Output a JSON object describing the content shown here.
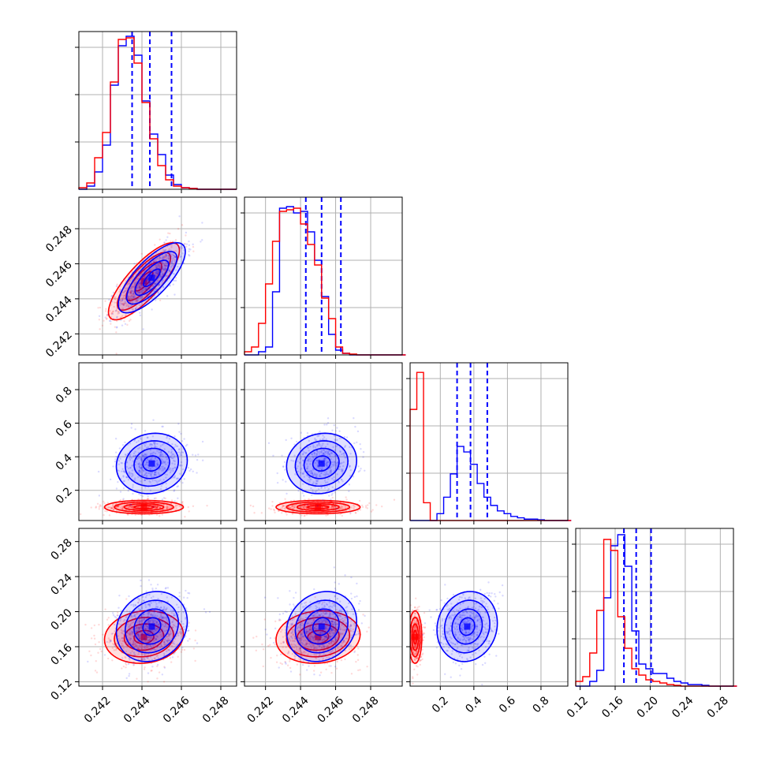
{
  "chart_data": {
    "type": "corner",
    "colors": {
      "a": "#ff0000",
      "b": "#0000ff",
      "grid": "#b0b0b0"
    },
    "parameters": [
      {
        "range": [
          0.2408,
          0.2488
        ],
        "ticks": [
          0.242,
          0.244,
          0.246,
          0.248
        ],
        "tick_labels": [
          "0.242",
          "0.244",
          "0.246",
          "0.248"
        ],
        "quantiles_b": [
          0.2435,
          0.2444,
          0.2455
        ],
        "hist": {
          "edges_start": 0.2408,
          "edge_step": 0.0004,
          "a": [
            0.01,
            0.04,
            0.2,
            0.36,
            0.68,
            0.95,
            0.96,
            0.8,
            0.55,
            0.32,
            0.15,
            0.06,
            0.02,
            0.01,
            0.005,
            0.0,
            0.0,
            0.0,
            0.0,
            0.0
          ],
          "b": [
            0.0,
            0.02,
            0.11,
            0.28,
            0.66,
            0.91,
            0.97,
            0.85,
            0.56,
            0.35,
            0.22,
            0.09,
            0.03,
            0.01,
            0.005,
            0.0,
            0.0,
            0.0,
            0.0,
            0.0
          ],
          "ymax": 1.0
        }
      },
      {
        "range": [
          0.2408,
          0.2498
        ],
        "ticks": [
          0.242,
          0.244,
          0.246,
          0.248
        ],
        "tick_labels": [
          "0.242",
          "0.244",
          "0.246",
          "0.248"
        ],
        "quantiles_b": [
          0.2443,
          0.2452,
          0.2463
        ],
        "hist": {
          "edges_start": 0.2408,
          "edge_step": 0.0004,
          "a": [
            0.02,
            0.05,
            0.2,
            0.45,
            0.72,
            0.91,
            0.92,
            0.93,
            0.83,
            0.7,
            0.57,
            0.36,
            0.23,
            0.05,
            0.01,
            0.005,
            0.0,
            0.0,
            0.0,
            0.0,
            0.0,
            0.0,
            0.0
          ],
          "b": [
            0.0,
            0.0,
            0.02,
            0.05,
            0.4,
            0.93,
            0.94,
            0.9,
            0.91,
            0.78,
            0.6,
            0.37,
            0.13,
            0.03,
            0.01,
            0.0,
            0.0,
            0.0,
            0.0,
            0.0,
            0.0,
            0.0,
            0.0
          ],
          "ymax": 1.0
        }
      },
      {
        "range": [
          0.02,
          0.96
        ],
        "ticks": [
          0.2,
          0.4,
          0.6,
          0.8
        ],
        "tick_labels": [
          "0.2",
          "0.4",
          "0.6",
          "0.8"
        ],
        "quantiles_b": [
          0.3,
          0.38,
          0.48
        ],
        "hist": {
          "edges_start": 0.02,
          "edge_step": 0.04,
          "a": [
            0.81,
            1.08,
            0.13,
            0.0,
            0.0,
            0.0,
            0.0,
            0.0,
            0.0,
            0.0,
            0.0,
            0.0,
            0.0,
            0.0,
            0.0,
            0.0,
            0.0,
            0.0,
            0.0,
            0.0,
            0.0,
            0.0,
            0.0,
            0.0
          ],
          "b": [
            0.0,
            0.0,
            0.0,
            0.0,
            0.05,
            0.17,
            0.34,
            0.54,
            0.5,
            0.41,
            0.27,
            0.17,
            0.11,
            0.07,
            0.05,
            0.03,
            0.02,
            0.01,
            0.01,
            0.005,
            0.0,
            0.0,
            0.0,
            0.0
          ],
          "ymax": 1.15
        }
      },
      {
        "range": [
          0.115,
          0.295
        ],
        "ticks": [
          0.12,
          0.16,
          0.2,
          0.24,
          0.28
        ],
        "tick_labels": [
          "0.12",
          "0.16",
          "0.20",
          "0.24",
          "0.28"
        ],
        "quantiles_b": [
          0.17,
          0.184,
          0.201
        ],
        "hist": {
          "edges_start": 0.115,
          "edge_step": 0.008,
          "a": [
            0.03,
            0.06,
            0.21,
            0.48,
            0.93,
            0.86,
            0.44,
            0.24,
            0.11,
            0.07,
            0.04,
            0.03,
            0.02,
            0.01,
            0.005,
            0.0,
            0.0,
            0.0,
            0.0,
            0.0,
            0.0,
            0.0,
            0.0
          ],
          "b": [
            0.0,
            0.0,
            0.03,
            0.1,
            0.56,
            0.89,
            0.96,
            0.76,
            0.35,
            0.14,
            0.11,
            0.08,
            0.08,
            0.05,
            0.03,
            0.02,
            0.01,
            0.01,
            0.005,
            0.0,
            0.0,
            0.0,
            0.0
          ],
          "ymax": 1.0
        }
      }
    ],
    "pairs": [
      {
        "row": 1,
        "col": 0,
        "a": {
          "mean": [
            0.2441,
            0.245
          ],
          "sd": [
            0.0009,
            0.0011
          ],
          "rho": 0.8
        },
        "b": {
          "mean": [
            0.2445,
            0.2452
          ],
          "sd": [
            0.00085,
            0.001
          ],
          "rho": 0.75
        }
      },
      {
        "row": 2,
        "col": 0,
        "a": {
          "mean": [
            0.2441,
            0.1
          ],
          "sd": [
            0.001,
            0.02
          ],
          "rho": 0.0
        },
        "b": {
          "mean": [
            0.2445,
            0.36
          ],
          "sd": [
            0.0009,
            0.09
          ],
          "rho": 0.1
        }
      },
      {
        "row": 2,
        "col": 1,
        "a": {
          "mean": [
            0.245,
            0.1
          ],
          "sd": [
            0.0012,
            0.02
          ],
          "rho": 0.0
        },
        "b": {
          "mean": [
            0.2452,
            0.36
          ],
          "sd": [
            0.001,
            0.09
          ],
          "rho": 0.1
        }
      },
      {
        "row": 3,
        "col": 0,
        "a": {
          "mean": [
            0.2441,
            0.171
          ],
          "sd": [
            0.001,
            0.015
          ],
          "rho": 0.1
        },
        "b": {
          "mean": [
            0.2445,
            0.183
          ],
          "sd": [
            0.0009,
            0.02
          ],
          "rho": 0.15
        }
      },
      {
        "row": 3,
        "col": 1,
        "a": {
          "mean": [
            0.245,
            0.171
          ],
          "sd": [
            0.0012,
            0.015
          ],
          "rho": 0.1
        },
        "b": {
          "mean": [
            0.2452,
            0.183
          ],
          "sd": [
            0.001,
            0.02
          ],
          "rho": 0.15
        }
      },
      {
        "row": 3,
        "col": 2,
        "a": {
          "mean": [
            0.05,
            0.171
          ],
          "sd": [
            0.02,
            0.015
          ],
          "rho": 0.0
        },
        "b": {
          "mean": [
            0.36,
            0.183
          ],
          "sd": [
            0.09,
            0.02
          ],
          "rho": 0.1
        }
      }
    ],
    "contour_levels_sigma": [
      0.5,
      1.0,
      1.5,
      2.0
    ],
    "scatter_points_per_panel": 500
  }
}
